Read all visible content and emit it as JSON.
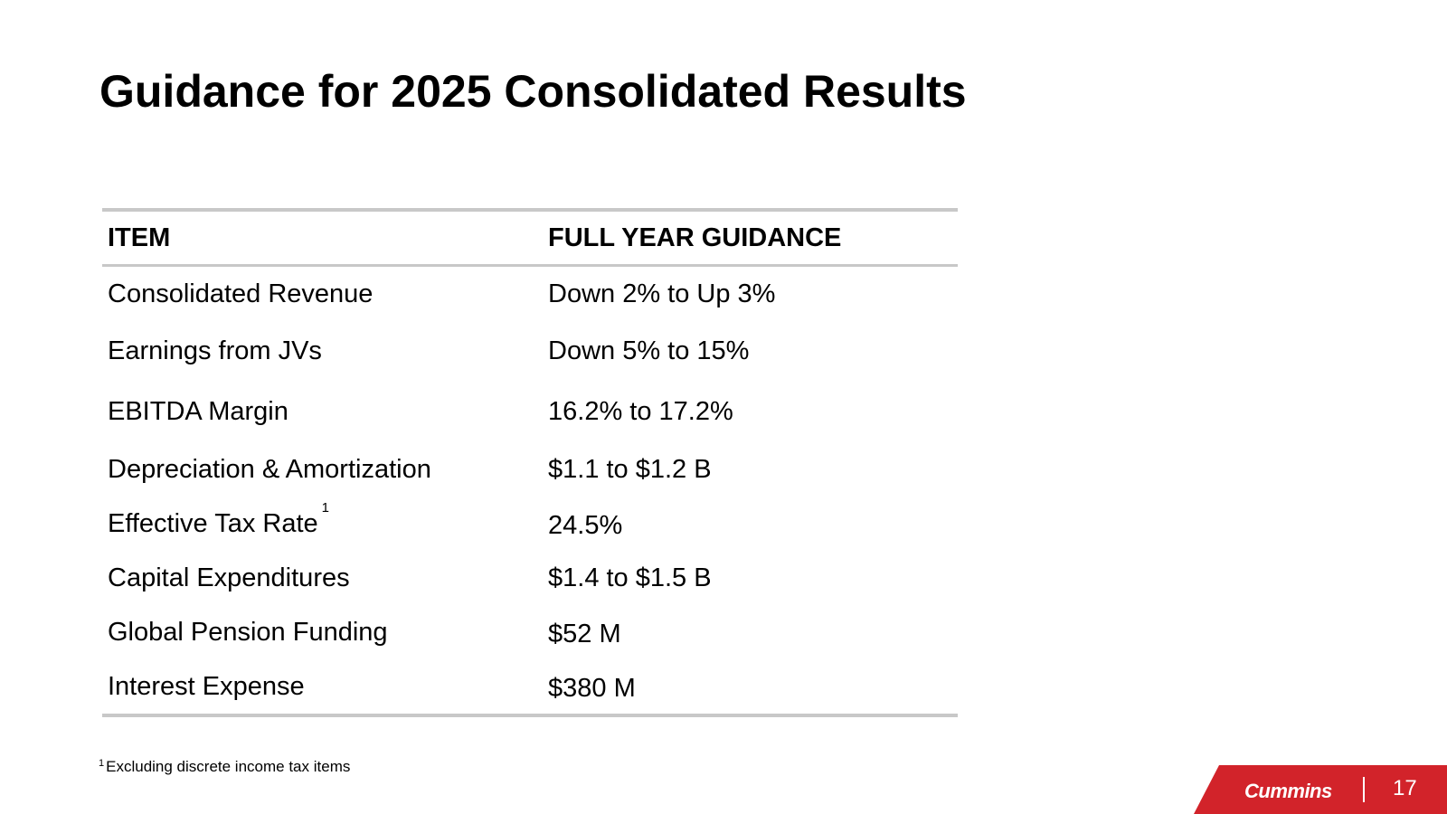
{
  "slide": {
    "title": "Guidance for 2025 Consolidated Results"
  },
  "table": {
    "headers": {
      "item": "ITEM",
      "guidance": "FULL YEAR GUIDANCE"
    },
    "rows": [
      {
        "item": "Consolidated Revenue",
        "guidance": "Down 2% to Up 3%",
        "sup": ""
      },
      {
        "item": "Earnings from JVs",
        "guidance": "Down 5% to 15%",
        "sup": ""
      },
      {
        "item": "EBITDA Margin",
        "guidance": "16.2% to 17.2%",
        "sup": ""
      },
      {
        "item": "Depreciation & Amortization",
        "guidance": "$1.1 to $1.2 B",
        "sup": ""
      },
      {
        "item": "Effective Tax Rate",
        "guidance": "24.5%",
        "sup": "1"
      },
      {
        "item": "Capital Expenditures",
        "guidance": "$1.4 to $1.5 B",
        "sup": ""
      },
      {
        "item": "Global Pension Funding",
        "guidance": "$52 M",
        "sup": ""
      },
      {
        "item": "Interest Expense",
        "guidance": "$380 M",
        "sup": ""
      }
    ]
  },
  "footnote": {
    "number": "1",
    "text": "Excluding discrete income tax items"
  },
  "brand": {
    "logo_text": "Cummins",
    "page_number": "17",
    "color": "#d2232a"
  }
}
